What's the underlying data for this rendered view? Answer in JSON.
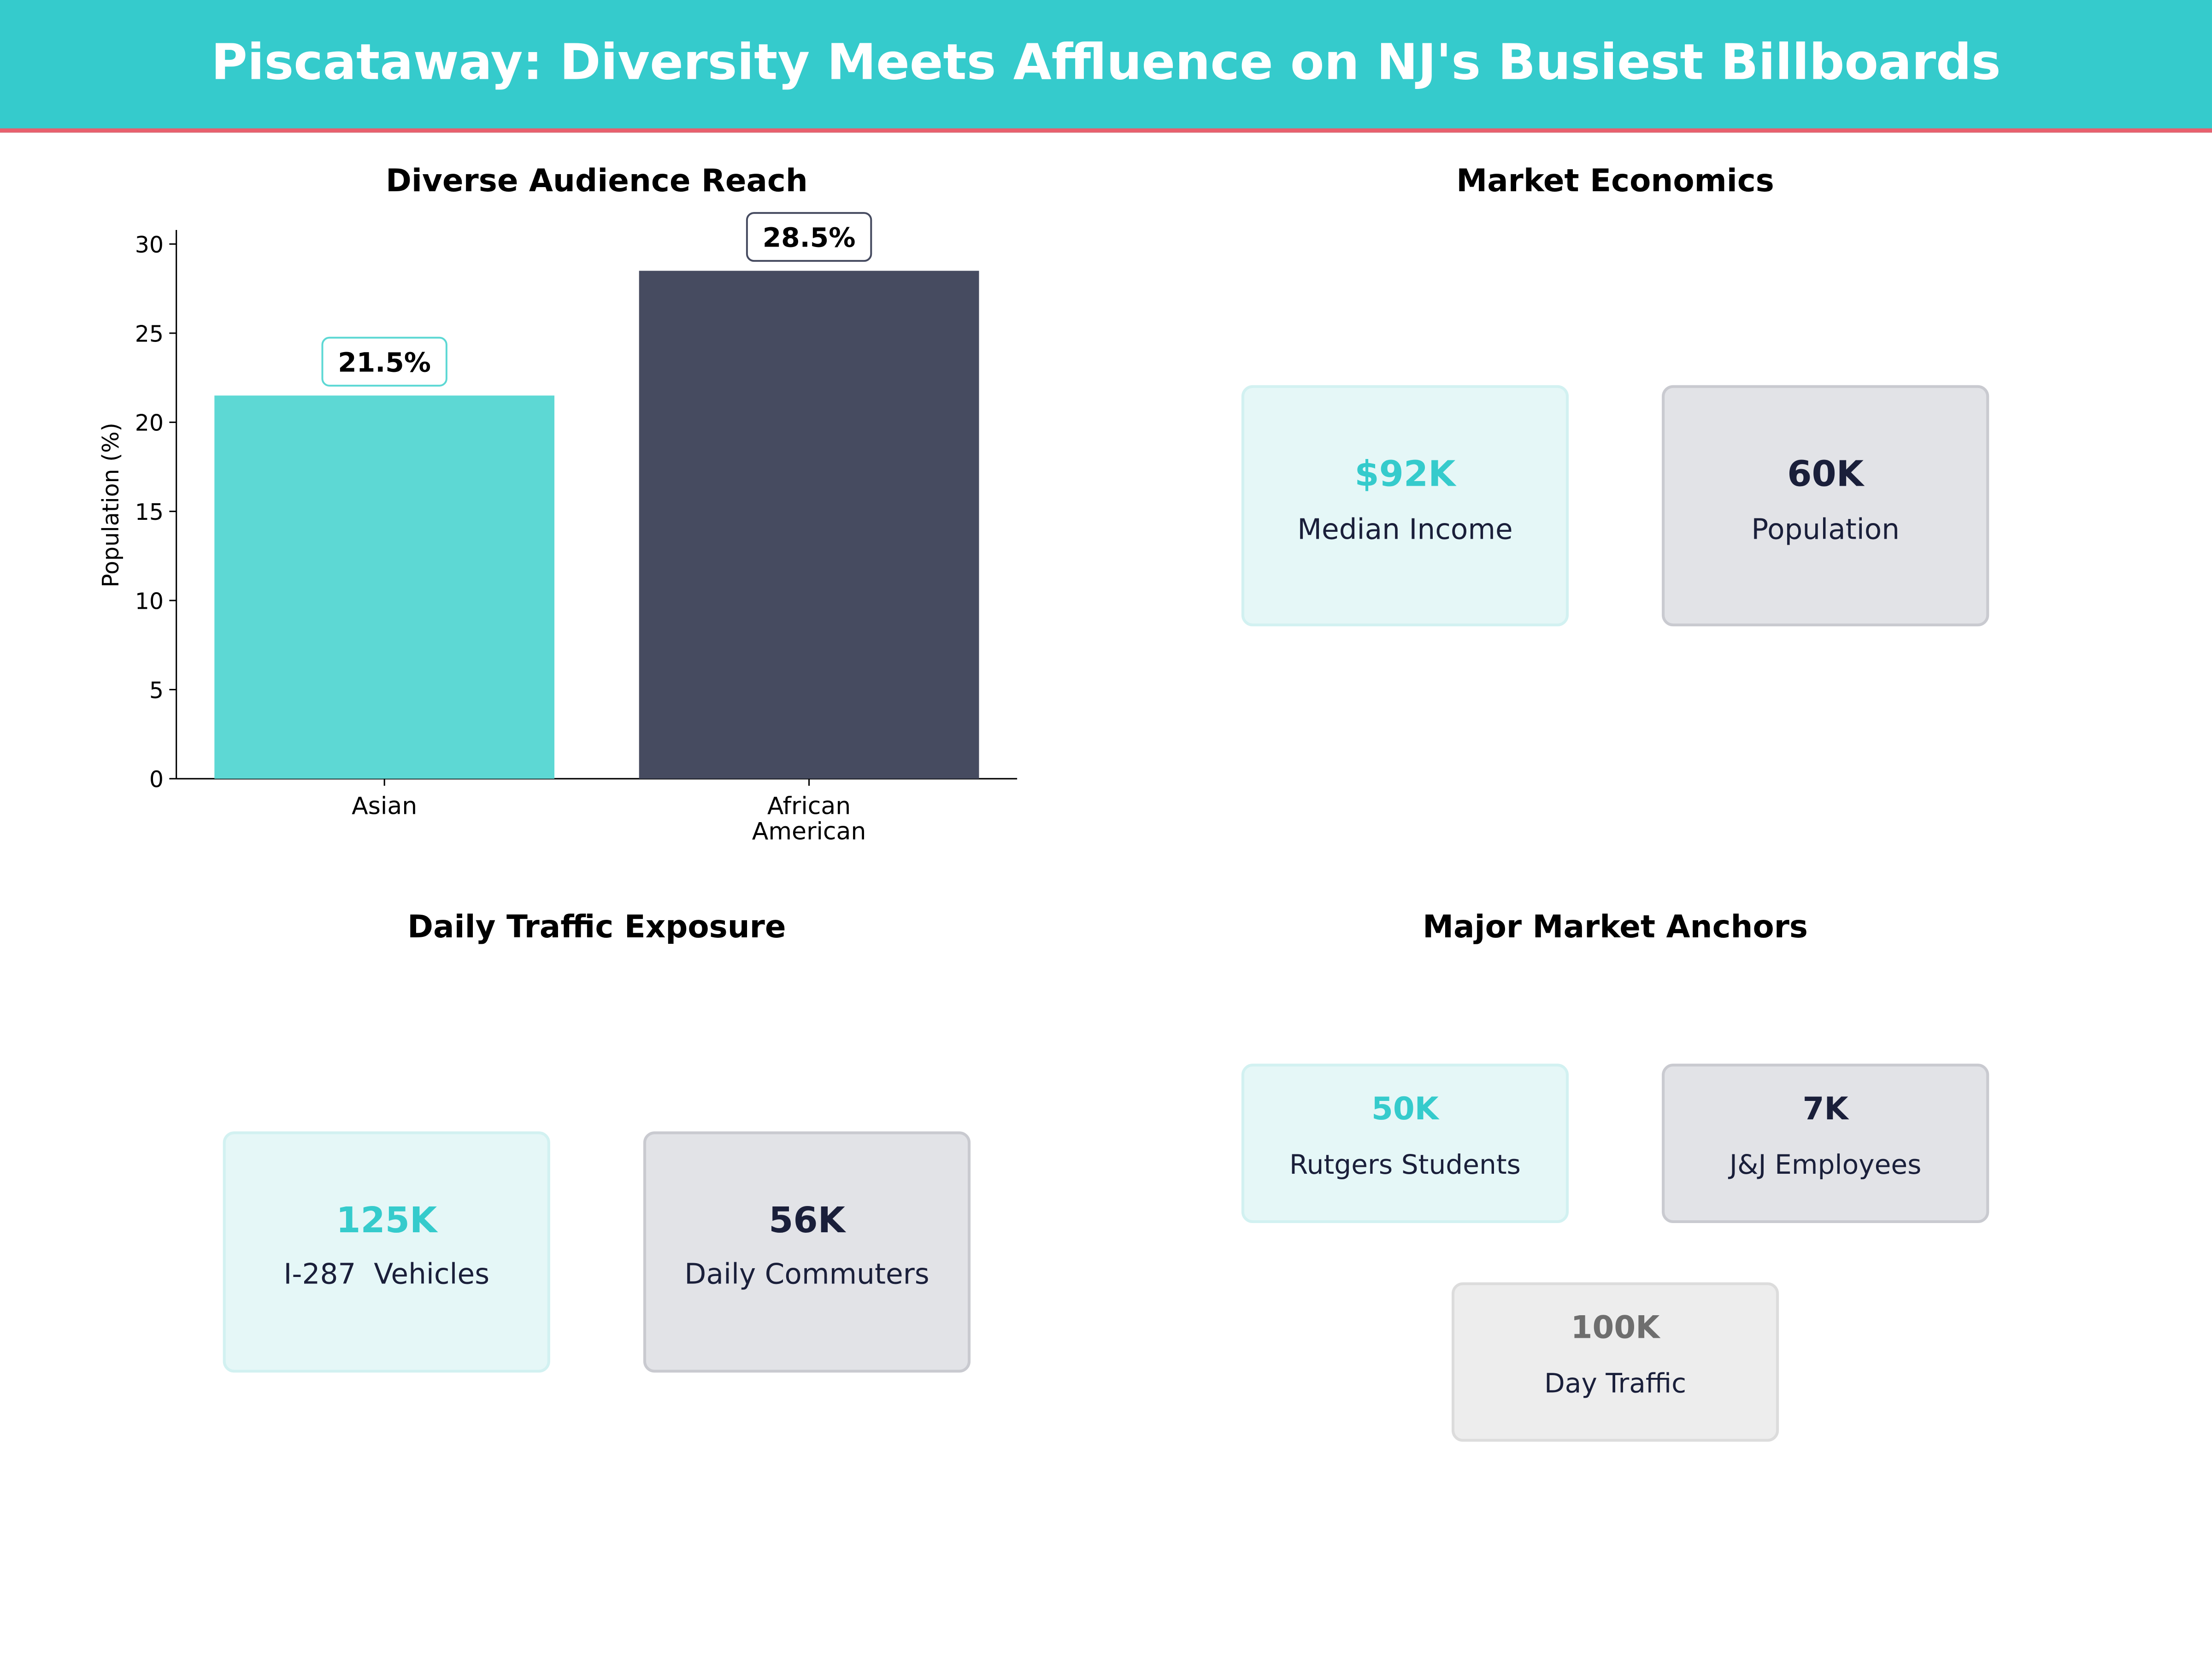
{
  "header": {
    "title": "Piscataway: Diversity Meets Affluence on NJ's Busiest Billboards"
  },
  "colors": {
    "header": "#35cbcc",
    "accent_line": "#e8606e",
    "teal": "#5dd8d4",
    "navy": "#464b60"
  },
  "chart_data": {
    "type": "bar",
    "title": "Diverse Audience Reach",
    "categories": [
      "Asian",
      "African\nAmerican"
    ],
    "values": [
      21.5,
      28.5
    ],
    "data_labels": [
      "21.5%",
      "28.5%"
    ],
    "colors": [
      "#5dd8d4",
      "#464b60"
    ],
    "xlabel": "",
    "ylabel": "Population (%)",
    "ylim": [
      0,
      30
    ],
    "yticks": [
      0,
      5,
      10,
      15,
      20,
      25,
      30
    ],
    "grid": false
  },
  "economics": {
    "title": "Market Economics",
    "cards": [
      {
        "value": "$92K",
        "label": "Median Income"
      },
      {
        "value": "60K",
        "label": "Population"
      }
    ]
  },
  "traffic": {
    "title": "Daily Traffic Exposure",
    "cards": [
      {
        "value": "125K",
        "label": "I-287  Vehicles"
      },
      {
        "value": "56K",
        "label": "Daily Commuters"
      }
    ]
  },
  "anchors": {
    "title": "Major Market Anchors",
    "cards": [
      {
        "value": "50K",
        "label": "Rutgers Students"
      },
      {
        "value": "7K",
        "label": "J&J Employees"
      },
      {
        "value": "100K",
        "label": "Day Traffic"
      }
    ]
  }
}
